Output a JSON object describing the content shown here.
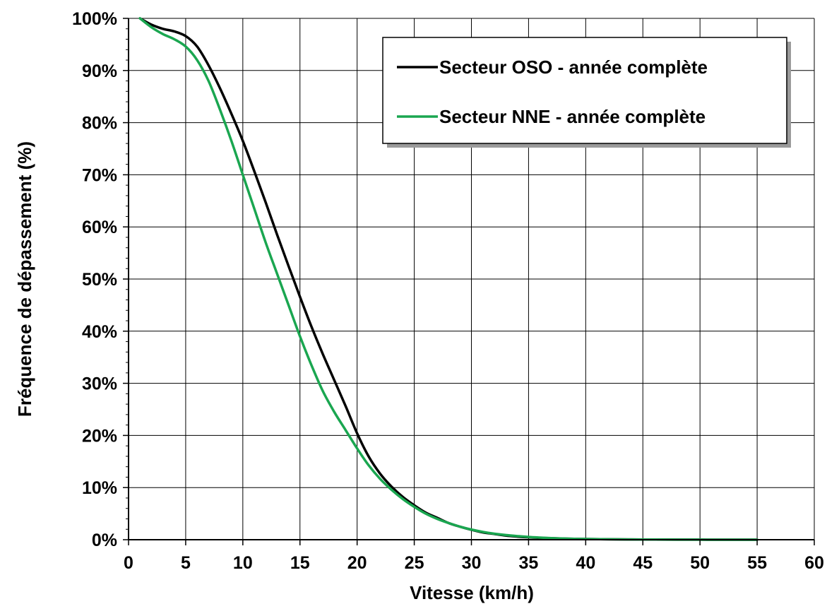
{
  "chart_data": {
    "type": "line",
    "title": "",
    "xlabel": "Vitesse (km/h)",
    "ylabel": "Fréquence de dépassement (%)",
    "xlim": [
      0,
      60
    ],
    "ylim": [
      0,
      100
    ],
    "x_ticks": [
      0,
      5,
      10,
      15,
      20,
      25,
      30,
      35,
      40,
      45,
      50,
      55,
      60
    ],
    "x_tick_labels": [
      "0",
      "5",
      "10",
      "15",
      "20",
      "25",
      "30",
      "35",
      "40",
      "45",
      "50",
      "55",
      "60"
    ],
    "y_ticks": [
      0,
      10,
      20,
      30,
      40,
      50,
      60,
      70,
      80,
      90,
      100
    ],
    "y_tick_labels": [
      "0%",
      "10%",
      "20%",
      "30%",
      "40%",
      "50%",
      "60%",
      "70%",
      "80%",
      "90%",
      "100%"
    ],
    "grid": true,
    "legend_position": "top-right",
    "series": [
      {
        "name": "Secteur OSO - année complète",
        "color": "#000000",
        "x": [
          1,
          2,
          3,
          4,
          5,
          6,
          7,
          8,
          9,
          10,
          11,
          12,
          13,
          14,
          15,
          16,
          17,
          18,
          19,
          20,
          21,
          22,
          23,
          24,
          25,
          26,
          27,
          28,
          29,
          30,
          31,
          32,
          33,
          34,
          35,
          36,
          37,
          38,
          39,
          40,
          42,
          44,
          46,
          48,
          50,
          52,
          55
        ],
        "y": [
          100,
          98.8,
          98.0,
          97.5,
          96.6,
          94.6,
          91.0,
          86.6,
          81.7,
          76.5,
          70.7,
          64.7,
          58.5,
          52.5,
          46.6,
          40.9,
          35.6,
          30.6,
          25.6,
          20.4,
          16.0,
          12.7,
          10.2,
          8.2,
          6.6,
          5.2,
          4.2,
          3.2,
          2.5,
          1.9,
          1.4,
          1.1,
          0.8,
          0.6,
          0.45,
          0.35,
          0.28,
          0.22,
          0.17,
          0.13,
          0.08,
          0.05,
          0.03,
          0.02,
          0.01,
          0.005,
          0.0
        ],
        "y_percent_note": ""
      },
      {
        "name": "Secteur NNE - année complète",
        "color": "#1aa650",
        "x": [
          1,
          2,
          3,
          4,
          5,
          6,
          7,
          8,
          9,
          10,
          11,
          12,
          13,
          14,
          15,
          16,
          17,
          18,
          19,
          20,
          21,
          22,
          23,
          24,
          25,
          26,
          27,
          28,
          29,
          30,
          31,
          32,
          33,
          34,
          35,
          36,
          37,
          38,
          39,
          40,
          42,
          44,
          46,
          48,
          50,
          52,
          55
        ],
        "y": [
          100,
          98.3,
          97.0,
          96.0,
          94.6,
          92.0,
          88.0,
          82.5,
          76.5,
          70.0,
          63.5,
          57.0,
          51.0,
          45.0,
          39.0,
          33.5,
          28.5,
          24.5,
          21.0,
          17.5,
          14.3,
          11.7,
          9.6,
          7.8,
          6.3,
          5.0,
          4.0,
          3.2,
          2.5,
          1.95,
          1.5,
          1.15,
          0.9,
          0.7,
          0.52,
          0.4,
          0.3,
          0.23,
          0.17,
          0.13,
          0.08,
          0.05,
          0.03,
          0.02,
          0.01,
          0.005,
          0.0
        ]
      }
    ]
  }
}
